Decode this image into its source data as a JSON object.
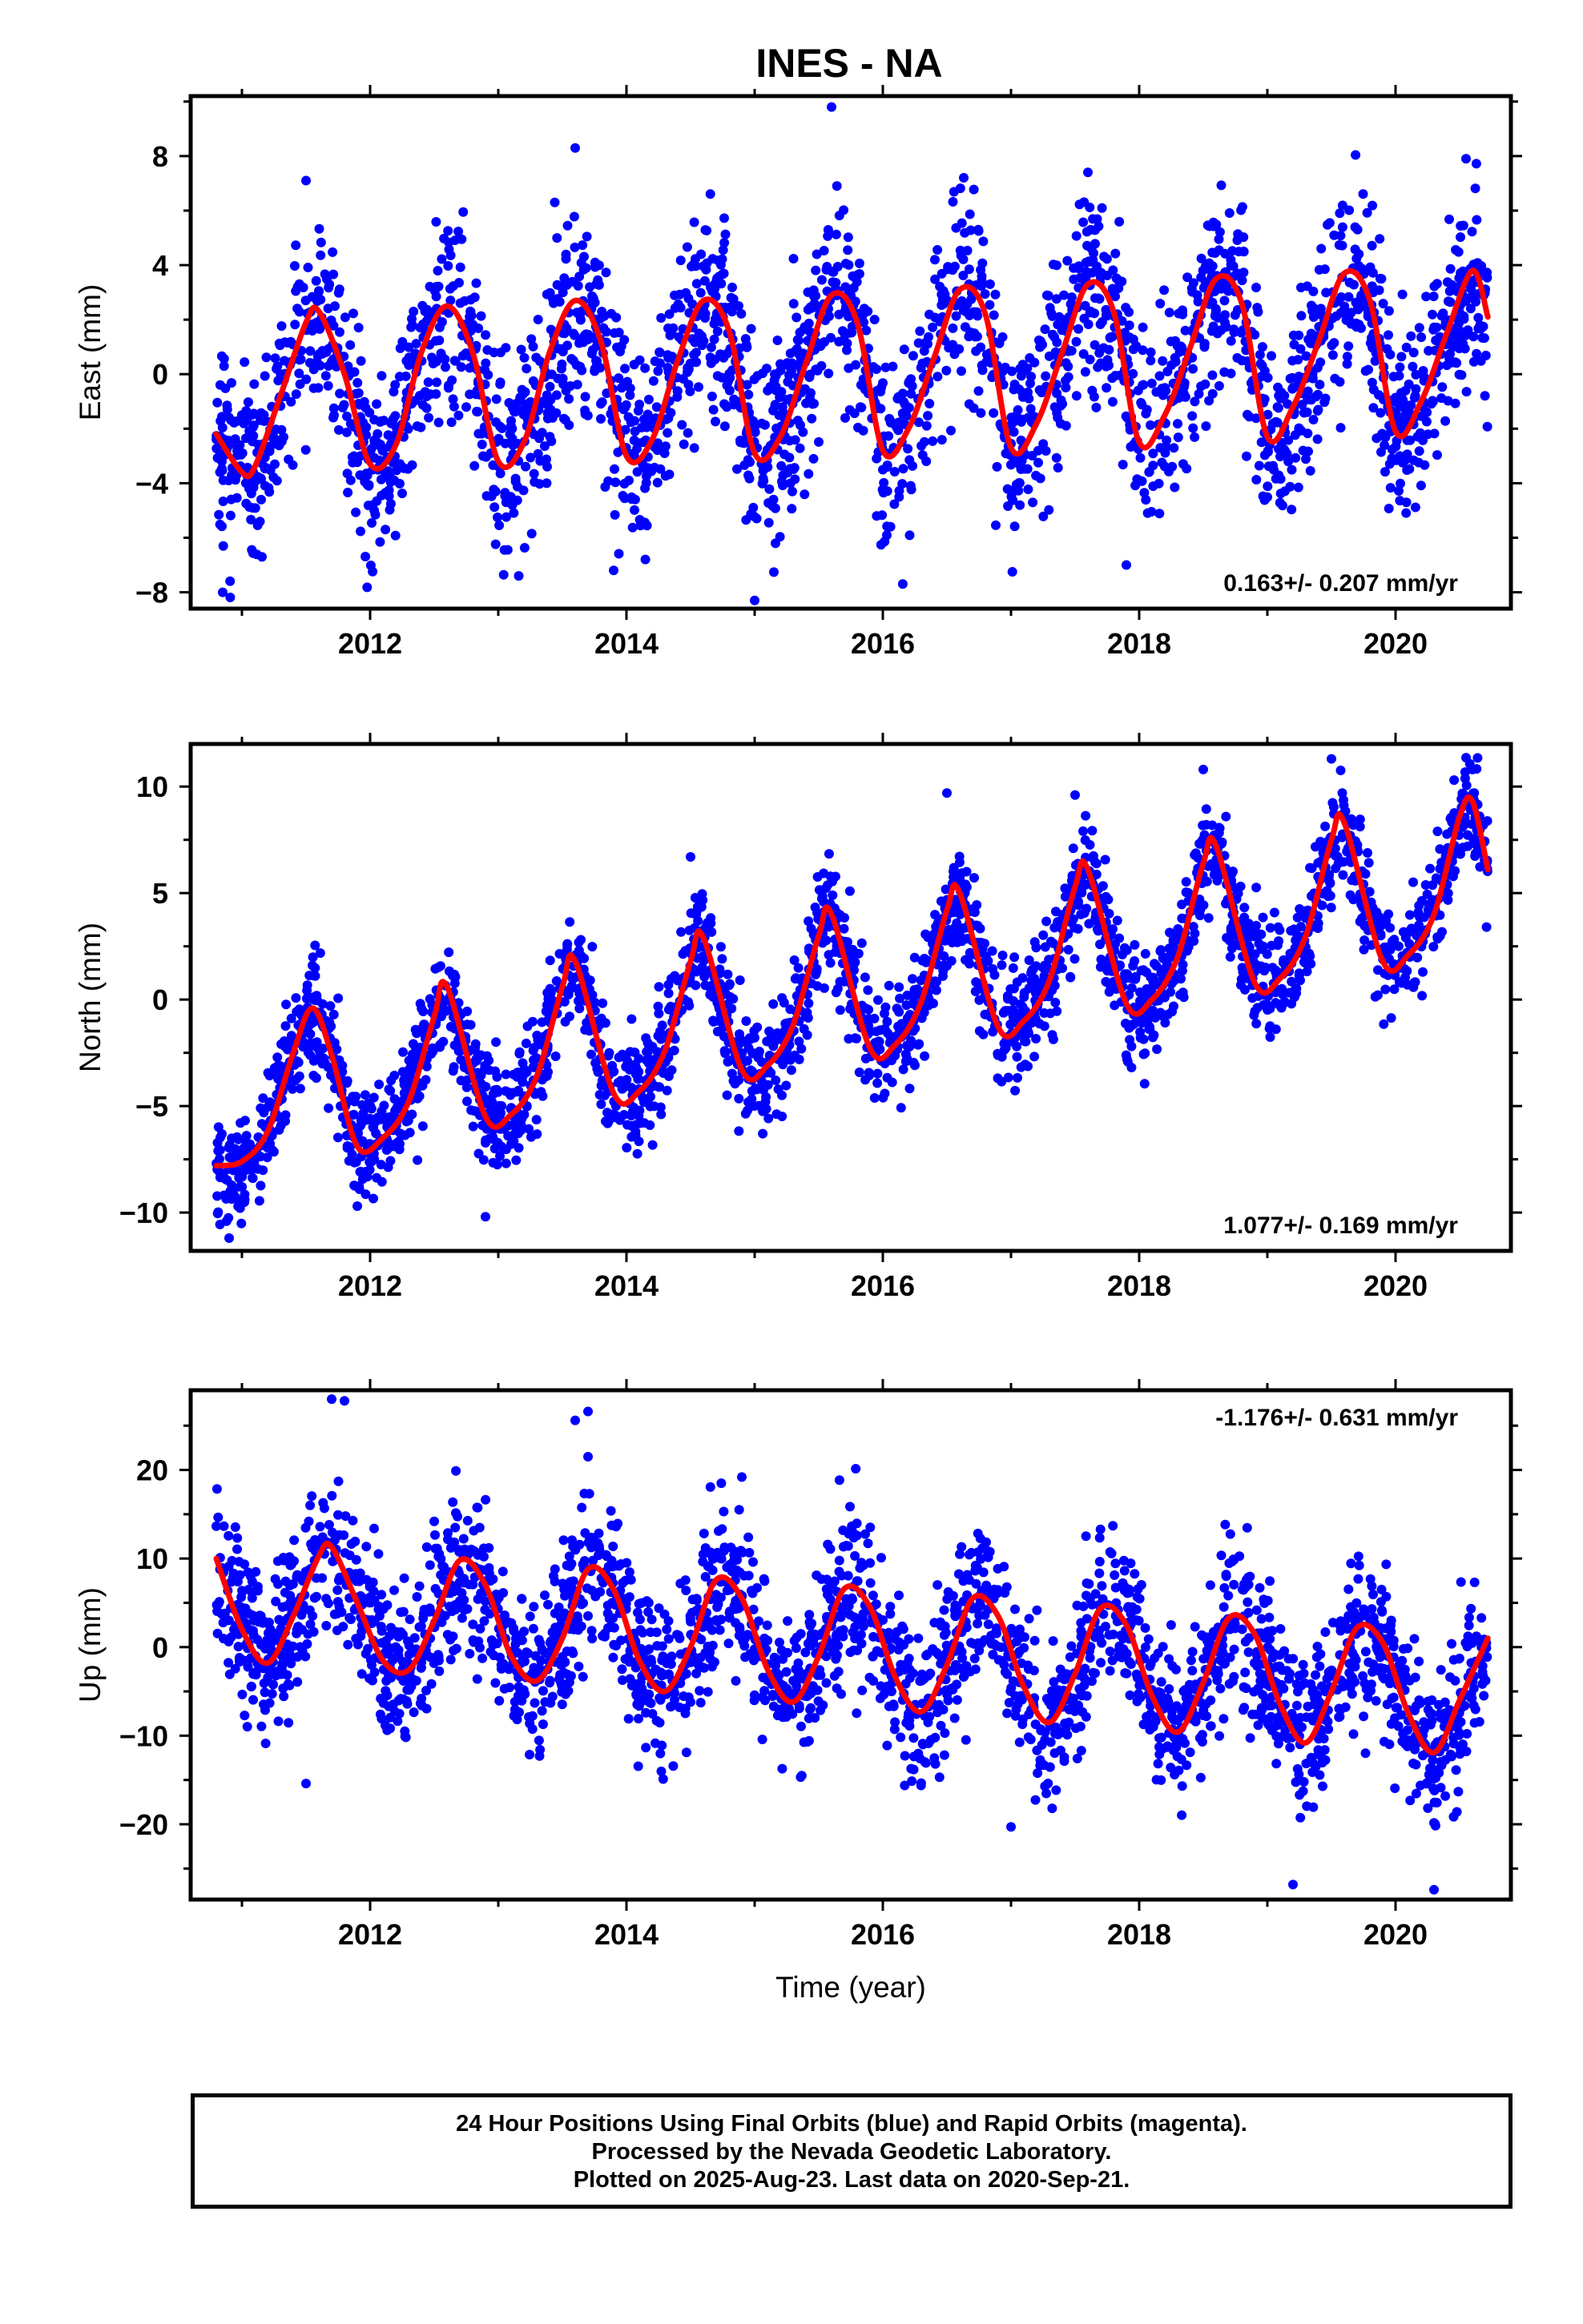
{
  "title": "INES - NA",
  "footer": {
    "line1": "24 Hour Positions Using Final Orbits (blue) and Rapid Orbits (magenta).",
    "line2": "Processed by the Nevada Geodetic Laboratory.",
    "line3": "Plotted on 2025-Aug-23. Last data on 2020-Sep-21."
  },
  "colors": {
    "points": "#0000ff",
    "fit": "#ff0000",
    "frame": "#000000"
  },
  "chart_data": [
    {
      "type": "scatter",
      "ylabel": "East (mm)",
      "xlabel": "",
      "xlim": [
        2010.6,
        2020.9
      ],
      "ylim": [
        -8.6,
        10.2
      ],
      "yticks": [
        8,
        4,
        0,
        -4,
        -8
      ],
      "xticks": [
        2012,
        2014,
        2016,
        2018,
        2020
      ],
      "annotation": "0.163+/- 0.207 mm/yr",
      "annotation_position": "bottom-right",
      "series": [
        {
          "role": "fit",
          "x": [
            2010.8,
            2011.0,
            2011.1,
            2011.3,
            2011.5,
            2011.6,
            2011.8,
            2012.0,
            2012.2,
            2012.4,
            2012.6,
            2012.8,
            2013.0,
            2013.2,
            2013.4,
            2013.6,
            2013.8,
            2014.0,
            2014.2,
            2014.4,
            2014.6,
            2014.8,
            2015.0,
            2015.2,
            2015.4,
            2015.6,
            2015.8,
            2016.0,
            2016.2,
            2016.4,
            2016.6,
            2016.8,
            2017.0,
            2017.2,
            2017.4,
            2017.6,
            2017.8,
            2018.0,
            2018.2,
            2018.4,
            2018.6,
            2018.8,
            2019.0,
            2019.2,
            2019.4,
            2019.6,
            2019.8,
            2020.0,
            2020.2,
            2020.4,
            2020.6,
            2020.72
          ],
          "y": [
            -2.2,
            -3.6,
            -3.4,
            -0.8,
            1.9,
            2.3,
            0.0,
            -3.3,
            -2.6,
            0.8,
            2.5,
            0.8,
            -3.2,
            -2.5,
            0.8,
            2.7,
            1.2,
            -3.0,
            -2.4,
            0.5,
            2.7,
            1.6,
            -2.9,
            -2.3,
            0.4,
            2.9,
            1.9,
            -2.8,
            -2.0,
            0.6,
            3.1,
            2.2,
            -2.7,
            -1.8,
            0.8,
            3.3,
            2.3,
            -2.5,
            -1.5,
            1.0,
            3.5,
            2.6,
            -2.3,
            -1.2,
            1.2,
            3.7,
            2.7,
            -2.1,
            -1.0,
            1.5,
            3.8,
            2.1
          ]
        },
        {
          "role": "observations",
          "scatter_around_fit_mm": 1.8,
          "outliers": [
            [
              2011.5,
              7.1
            ],
            [
              2013.6,
              8.3
            ],
            [
              2015.6,
              9.8
            ],
            [
              2017.6,
              7.4
            ],
            [
              2020.55,
              7.9
            ],
            [
              2010.85,
              -8.0
            ],
            [
              2015.0,
              -8.3
            ],
            [
              2013.9,
              -7.2
            ],
            [
              2017.9,
              -7.0
            ]
          ]
        }
      ]
    },
    {
      "type": "scatter",
      "ylabel": "North (mm)",
      "xlabel": "",
      "xlim": [
        2010.6,
        2020.9
      ],
      "ylim": [
        -11.8,
        12.0
      ],
      "yticks": [
        10,
        5,
        0,
        -5,
        -10
      ],
      "xticks": [
        2012,
        2014,
        2016,
        2018,
        2020
      ],
      "annotation": "1.077+/- 0.169 mm/yr",
      "annotation_position": "bottom-right",
      "series": [
        {
          "role": "fit",
          "x": [
            2010.8,
            2011.0,
            2011.2,
            2011.4,
            2011.55,
            2011.7,
            2011.9,
            2012.1,
            2012.3,
            2012.5,
            2012.6,
            2012.9,
            2013.1,
            2013.3,
            2013.5,
            2013.6,
            2013.9,
            2014.1,
            2014.3,
            2014.5,
            2014.6,
            2014.9,
            2015.1,
            2015.3,
            2015.5,
            2015.6,
            2015.9,
            2016.1,
            2016.3,
            2016.5,
            2016.6,
            2016.9,
            2017.1,
            2017.3,
            2017.5,
            2017.6,
            2017.9,
            2018.1,
            2018.3,
            2018.5,
            2018.6,
            2018.9,
            2019.1,
            2019.3,
            2019.5,
            2019.6,
            2019.9,
            2020.1,
            2020.3,
            2020.5,
            2020.6,
            2020.72
          ],
          "y": [
            -7.8,
            -7.6,
            -6.2,
            -2.5,
            -0.4,
            -2.6,
            -6.9,
            -6.5,
            -4.8,
            -0.8,
            0.6,
            -5.5,
            -5.4,
            -3.6,
            0.6,
            1.8,
            -4.4,
            -4.3,
            -2.4,
            1.8,
            2.9,
            -3.3,
            -3.1,
            -1.2,
            3.0,
            4.0,
            -2.3,
            -2.1,
            -0.1,
            4.2,
            5.0,
            -1.3,
            -1.0,
            0.9,
            5.3,
            6.1,
            -0.2,
            0.0,
            2.0,
            6.4,
            7.2,
            0.8,
            1.0,
            3.0,
            7.5,
            8.3,
            1.8,
            2.1,
            4.0,
            8.6,
            9.3,
            6.1
          ]
        },
        {
          "role": "observations",
          "scatter_around_fit_mm": 1.3,
          "outliers": [
            [
              2014.5,
              6.7
            ],
            [
              2016.5,
              9.7
            ],
            [
              2017.5,
              9.6
            ],
            [
              2018.5,
              10.8
            ],
            [
              2019.5,
              11.3
            ],
            [
              2020.6,
              10.8
            ],
            [
              2010.9,
              -11.2
            ],
            [
              2012.9,
              -10.2
            ],
            [
              2011.9,
              -9.7
            ]
          ]
        }
      ]
    },
    {
      "type": "scatter",
      "ylabel": "Up (mm)",
      "xlabel": "Time (year)",
      "xlim": [
        2010.6,
        2020.9
      ],
      "ylim": [
        -28.5,
        29.0
      ],
      "yticks": [
        20,
        10,
        0,
        -10,
        -20
      ],
      "xticks": [
        2012,
        2014,
        2016,
        2018,
        2020
      ],
      "annotation": "-1.176+/- 0.631 mm/yr",
      "annotation_position": "top-right",
      "series": [
        {
          "role": "fit",
          "x": [
            2010.8,
            2011.0,
            2011.2,
            2011.4,
            2011.6,
            2011.7,
            2011.9,
            2012.1,
            2012.3,
            2012.5,
            2012.7,
            2012.9,
            2013.1,
            2013.3,
            2013.5,
            2013.7,
            2013.9,
            2014.1,
            2014.3,
            2014.5,
            2014.7,
            2014.9,
            2015.1,
            2015.3,
            2015.5,
            2015.7,
            2015.9,
            2016.1,
            2016.3,
            2016.5,
            2016.7,
            2016.9,
            2017.1,
            2017.3,
            2017.5,
            2017.7,
            2017.9,
            2018.1,
            2018.3,
            2018.5,
            2018.7,
            2018.9,
            2019.1,
            2019.3,
            2019.5,
            2019.7,
            2019.9,
            2020.1,
            2020.3,
            2020.5,
            2020.72
          ],
          "y": [
            10.0,
            2.0,
            -1.8,
            3.5,
            10.3,
            11.3,
            5.0,
            -1.5,
            -2.6,
            3.0,
            9.8,
            7.0,
            -1.0,
            -3.8,
            1.0,
            8.8,
            6.5,
            -1.5,
            -5.0,
            0.0,
            7.6,
            5.5,
            -2.5,
            -6.2,
            -1.0,
            6.6,
            4.5,
            -3.5,
            -7.3,
            -2.0,
            5.5,
            3.5,
            -4.5,
            -8.5,
            -3.0,
            4.4,
            2.5,
            -5.5,
            -9.6,
            -4.0,
            3.3,
            1.5,
            -6.5,
            -10.8,
            -5.0,
            2.2,
            0.5,
            -7.5,
            -11.9,
            -6.0,
            1.0
          ]
        },
        {
          "role": "observations",
          "scatter_around_fit_mm": 4.5,
          "outliers": [
            [
              2011.7,
              28.0
            ],
            [
              2011.8,
              27.8
            ],
            [
              2013.6,
              25.6
            ],
            [
              2013.7,
              26.6
            ],
            [
              2013.7,
              21.5
            ],
            [
              2014.9,
              19.2
            ],
            [
              2019.2,
              -26.8
            ],
            [
              2020.3,
              -27.4
            ],
            [
              2011.5,
              -15.4
            ],
            [
              2017.0,
              -20.3
            ]
          ]
        }
      ]
    }
  ]
}
